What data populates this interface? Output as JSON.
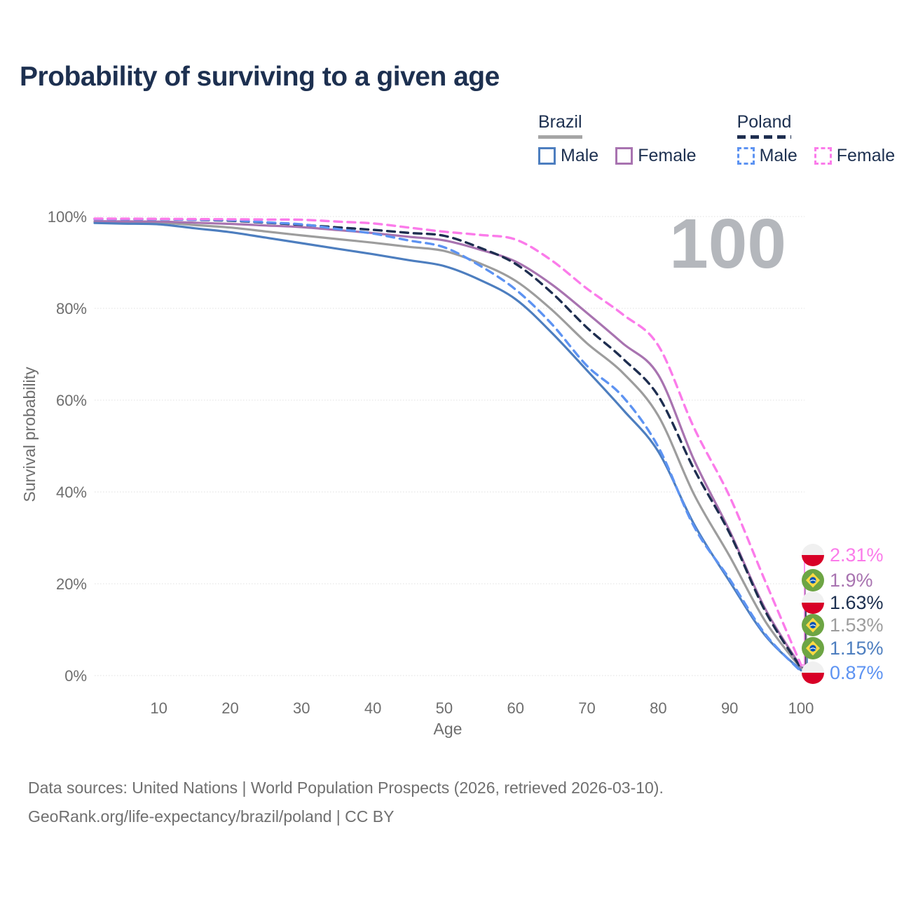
{
  "title": "Probability of surviving to a given age",
  "watermark": "100",
  "legend": {
    "brazil": {
      "label": "Brazil",
      "male": "Male",
      "female": "Female"
    },
    "poland": {
      "label": "Poland",
      "male": "Male",
      "female": "Female"
    }
  },
  "colors": {
    "title": "#1d3050",
    "axis_text": "#6e6e6e",
    "grid": "#e0e0e0",
    "watermark": "#b4b7bc",
    "brazil_rule": "#a5a5a5",
    "poland_rule": "#1e2e50",
    "flag_poland_top": "#f0f0f0",
    "flag_poland_bottom": "#d80027",
    "flag_brazil_green": "#6da544",
    "flag_brazil_yellow": "#ffda44",
    "flag_brazil_blue": "#0052b4"
  },
  "chart_data": {
    "type": "line",
    "title": "Probability of surviving to a given age",
    "xlabel": "Age",
    "ylabel": "Survival probability",
    "xlim": [
      1,
      100
    ],
    "ylim": [
      0,
      100
    ],
    "grid": true,
    "x_ticks": [
      10,
      20,
      30,
      40,
      50,
      60,
      70,
      80,
      90,
      100
    ],
    "y_ticks": [
      {
        "value": 0,
        "label": "0%"
      },
      {
        "value": 20,
        "label": "20%"
      },
      {
        "value": 40,
        "label": "40%"
      },
      {
        "value": 60,
        "label": "60%"
      },
      {
        "value": 80,
        "label": "80%"
      },
      {
        "value": 100,
        "label": "100%"
      }
    ],
    "ages": [
      1,
      5,
      10,
      15,
      20,
      25,
      30,
      35,
      40,
      45,
      50,
      55,
      60,
      65,
      70,
      75,
      80,
      85,
      90,
      95,
      100
    ],
    "series": [
      {
        "id": "brazil-total",
        "name": "Brazil",
        "country": "brazil",
        "sex": "total",
        "color": "#9d9d9d",
        "dash": "solid",
        "values": [
          98.85,
          98.78,
          98.7,
          98.15,
          97.6,
          96.75,
          95.9,
          95.1,
          94.3,
          93.4,
          92.5,
          89.8,
          86.0,
          79.8,
          72.4,
          66.0,
          56.6,
          39.5,
          26.0,
          11.8,
          1.53
        ],
        "end_label": "1.53%"
      },
      {
        "id": "brazil-female",
        "name": "Brazil — Female",
        "country": "brazil",
        "sex": "female",
        "color": "#a873b0",
        "dash": "solid",
        "values": [
          99.0,
          98.95,
          98.9,
          98.65,
          98.4,
          98.05,
          97.7,
          97.05,
          96.4,
          95.6,
          94.8,
          92.8,
          90.2,
          85.3,
          79.0,
          72.4,
          65.5,
          47.0,
          31.5,
          14.5,
          1.9
        ],
        "end_label": "1.9%"
      },
      {
        "id": "brazil-male",
        "name": "Brazil — Male",
        "country": "brazil",
        "sex": "male",
        "color": "#4d7ebf",
        "dash": "solid",
        "values": [
          98.6,
          98.45,
          98.3,
          97.45,
          96.6,
          95.4,
          94.2,
          93.0,
          91.8,
          90.5,
          89.2,
          86.2,
          82.0,
          74.8,
          66.5,
          58.0,
          48.8,
          33.0,
          20.5,
          8.7,
          1.15
        ],
        "end_label": "1.15%"
      },
      {
        "id": "poland-total",
        "name": "Poland",
        "country": "poland",
        "sex": "total",
        "color": "#1e2e50",
        "dash": "dashed",
        "values": [
          99.5,
          99.48,
          99.45,
          99.28,
          99.1,
          98.65,
          98.2,
          97.65,
          97.1,
          96.45,
          95.8,
          93.2,
          89.7,
          83.5,
          75.8,
          69.1,
          60.9,
          45.0,
          31.0,
          14.0,
          1.63
        ],
        "end_label": "1.63%"
      },
      {
        "id": "poland-male",
        "name": "Poland — Male",
        "country": "poland",
        "sex": "male",
        "color": "#5d93f2",
        "dash": "dashed",
        "values": [
          99.45,
          99.43,
          99.4,
          99.3,
          99.2,
          98.75,
          98.3,
          97.3,
          96.3,
          94.8,
          93.3,
          89.3,
          84.1,
          76.7,
          67.5,
          60.8,
          49.8,
          32.5,
          21.0,
          9.0,
          0.87
        ],
        "end_label": "0.87%"
      },
      {
        "id": "poland-female",
        "name": "Poland — Female",
        "country": "poland",
        "sex": "female",
        "color": "#fb7bea",
        "dash": "dashed",
        "values": [
          99.55,
          99.53,
          99.5,
          99.45,
          99.4,
          99.35,
          99.3,
          98.9,
          98.5,
          97.6,
          96.7,
          96.0,
          95.0,
          90.5,
          84.3,
          78.7,
          71.9,
          54.0,
          39.0,
          20.5,
          2.31
        ],
        "end_label": "2.31%"
      }
    ],
    "end_labels": [
      {
        "value": "2.31%",
        "series": "poland-female",
        "flag": "poland",
        "color": "#fb7bea"
      },
      {
        "value": "1.9%",
        "series": "brazil-female",
        "flag": "brazil",
        "color": "#a873b0"
      },
      {
        "value": "1.63%",
        "series": "poland-total",
        "flag": "poland",
        "color": "#1d3050"
      },
      {
        "value": "1.53%",
        "series": "brazil-total",
        "flag": "brazil",
        "color": "#9d9d9d"
      },
      {
        "value": "1.15%",
        "series": "brazil-male",
        "flag": "brazil",
        "color": "#4d7ebf"
      },
      {
        "value": "0.87%",
        "series": "poland-male",
        "flag": "poland",
        "color": "#5d93f2"
      }
    ],
    "legend_position": "top-right"
  },
  "footer": {
    "line1": "Data sources: United Nations | World Population Prospects (2026, retrieved 2026-03-10).",
    "line2": "GeoRank.org/life-expectancy/brazil/poland | CC BY"
  }
}
